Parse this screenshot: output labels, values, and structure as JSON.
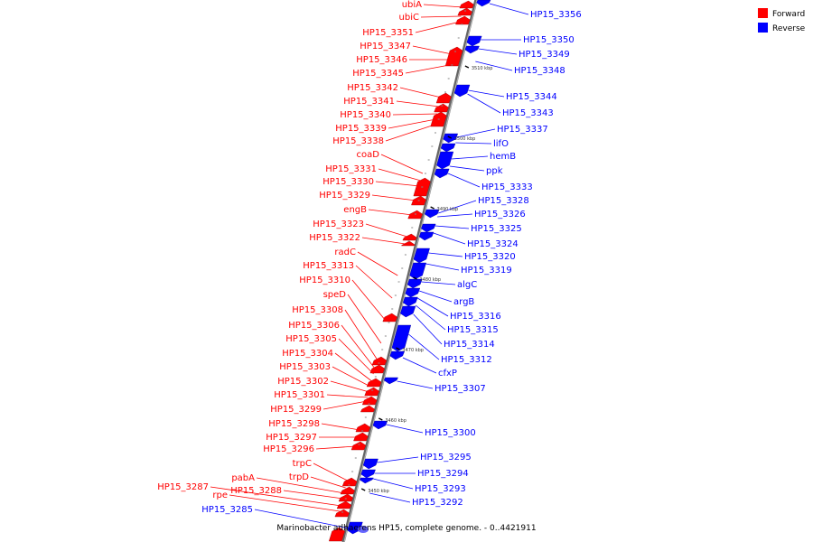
{
  "colors": {
    "forward": "#ff0000",
    "reverse": "#0000ff",
    "axis": "#999999"
  },
  "legend": [
    {
      "label": "Forward",
      "color": "#ff0000"
    },
    {
      "label": "Reverse",
      "color": "#0000ff"
    }
  ],
  "caption": "Marinobacter adhaerens HP15, complete genome. - 0..4421911",
  "ticks": [
    "3510 kbp",
    "3500 kbp",
    "3490 kbp",
    "3480 kbp",
    "3470 kbp",
    "3460 kbp",
    "3450 kbp"
  ],
  "forward_labels": [
    "ubiA",
    "ubiC",
    "HP15_3351",
    "HP15_3347",
    "HP15_3346",
    "HP15_3345",
    "HP15_3342",
    "HP15_3341",
    "HP15_3340",
    "HP15_3339",
    "HP15_3338",
    "coaD",
    "HP15_3331",
    "HP15_3330",
    "HP15_3329",
    "engB",
    "HP15_3323",
    "HP15_3322",
    "radC",
    "HP15_3313",
    "HP15_3310",
    "speD",
    "HP15_3308",
    "HP15_3306",
    "HP15_3305",
    "HP15_3304",
    "HP15_3303",
    "HP15_3302",
    "HP15_3301",
    "HP15_3299",
    "HP15_3298",
    "HP15_3297",
    "HP15_3296",
    "trpC",
    "trpD",
    "pabA",
    "HP15_3288",
    "HP15_3287",
    "rpe"
  ],
  "reverse_labels": [
    "HP15_3356",
    "HP15_3350",
    "HP15_3349",
    "HP15_3348",
    "HP15_3344",
    "HP15_3343",
    "HP15_3337",
    "lifO",
    "hemB",
    "ppk",
    "HP15_3333",
    "HP15_3328",
    "HP15_3326",
    "HP15_3325",
    "HP15_3324",
    "HP15_3320",
    "HP15_3319",
    "algC",
    "argB",
    "HP15_3316",
    "HP15_3315",
    "HP15_3314",
    "HP15_3312",
    "cfxP",
    "HP15_3307",
    "HP15_3300",
    "HP15_3295",
    "HP15_3294",
    "HP15_3293",
    "HP15_3292"
  ],
  "left_reverse_labels": [
    "HP15_3285"
  ]
}
